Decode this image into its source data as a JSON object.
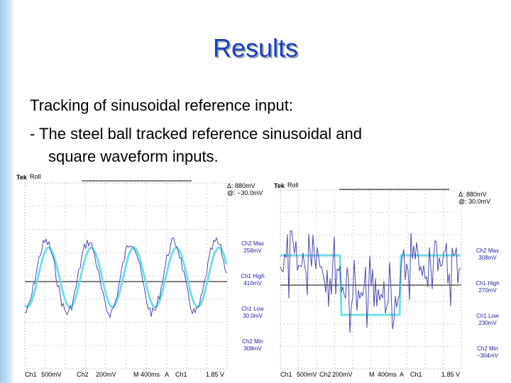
{
  "slide": {
    "title": "Results",
    "body": [
      "Tracking of sinusoidal reference input:",
      "- The steel ball tracked reference sinusoidal and",
      "square waveform inputs."
    ],
    "scopes": [
      {
        "brand": "Tek",
        "mode": "Roll",
        "delta": "Δ:  880mV",
        "at": "@: −30.0mV",
        "readouts": [
          [
            "Ch2 Max",
            "256mV"
          ],
          [
            "Ch1 High",
            "410mV"
          ],
          [
            "Ch1 Low",
            "30.0mV"
          ],
          [
            "Ch2 Min",
            "308mV"
          ]
        ],
        "footer": [
          "Ch1",
          "500mV",
          "Ch2",
          "200mV",
          "M",
          "400ms",
          "A",
          "Ch1",
          "1.85 V"
        ]
      },
      {
        "brand": "Tek",
        "mode": "Roll",
        "delta": "Δ:  880mV",
        "at": "@:  30.0mV",
        "readouts": [
          [
            "Ch2 Max",
            "308mV"
          ],
          [
            "Ch1 High",
            "270mV"
          ],
          [
            "Ch1 Low",
            "230mV"
          ],
          [
            "Ch2 Min",
            "−304mV"
          ]
        ],
        "footer": [
          "Ch1",
          "500mV",
          "Ch2",
          "200mV",
          "M",
          "400ms",
          "A",
          "Ch1",
          "1.85 V"
        ]
      }
    ]
  }
}
